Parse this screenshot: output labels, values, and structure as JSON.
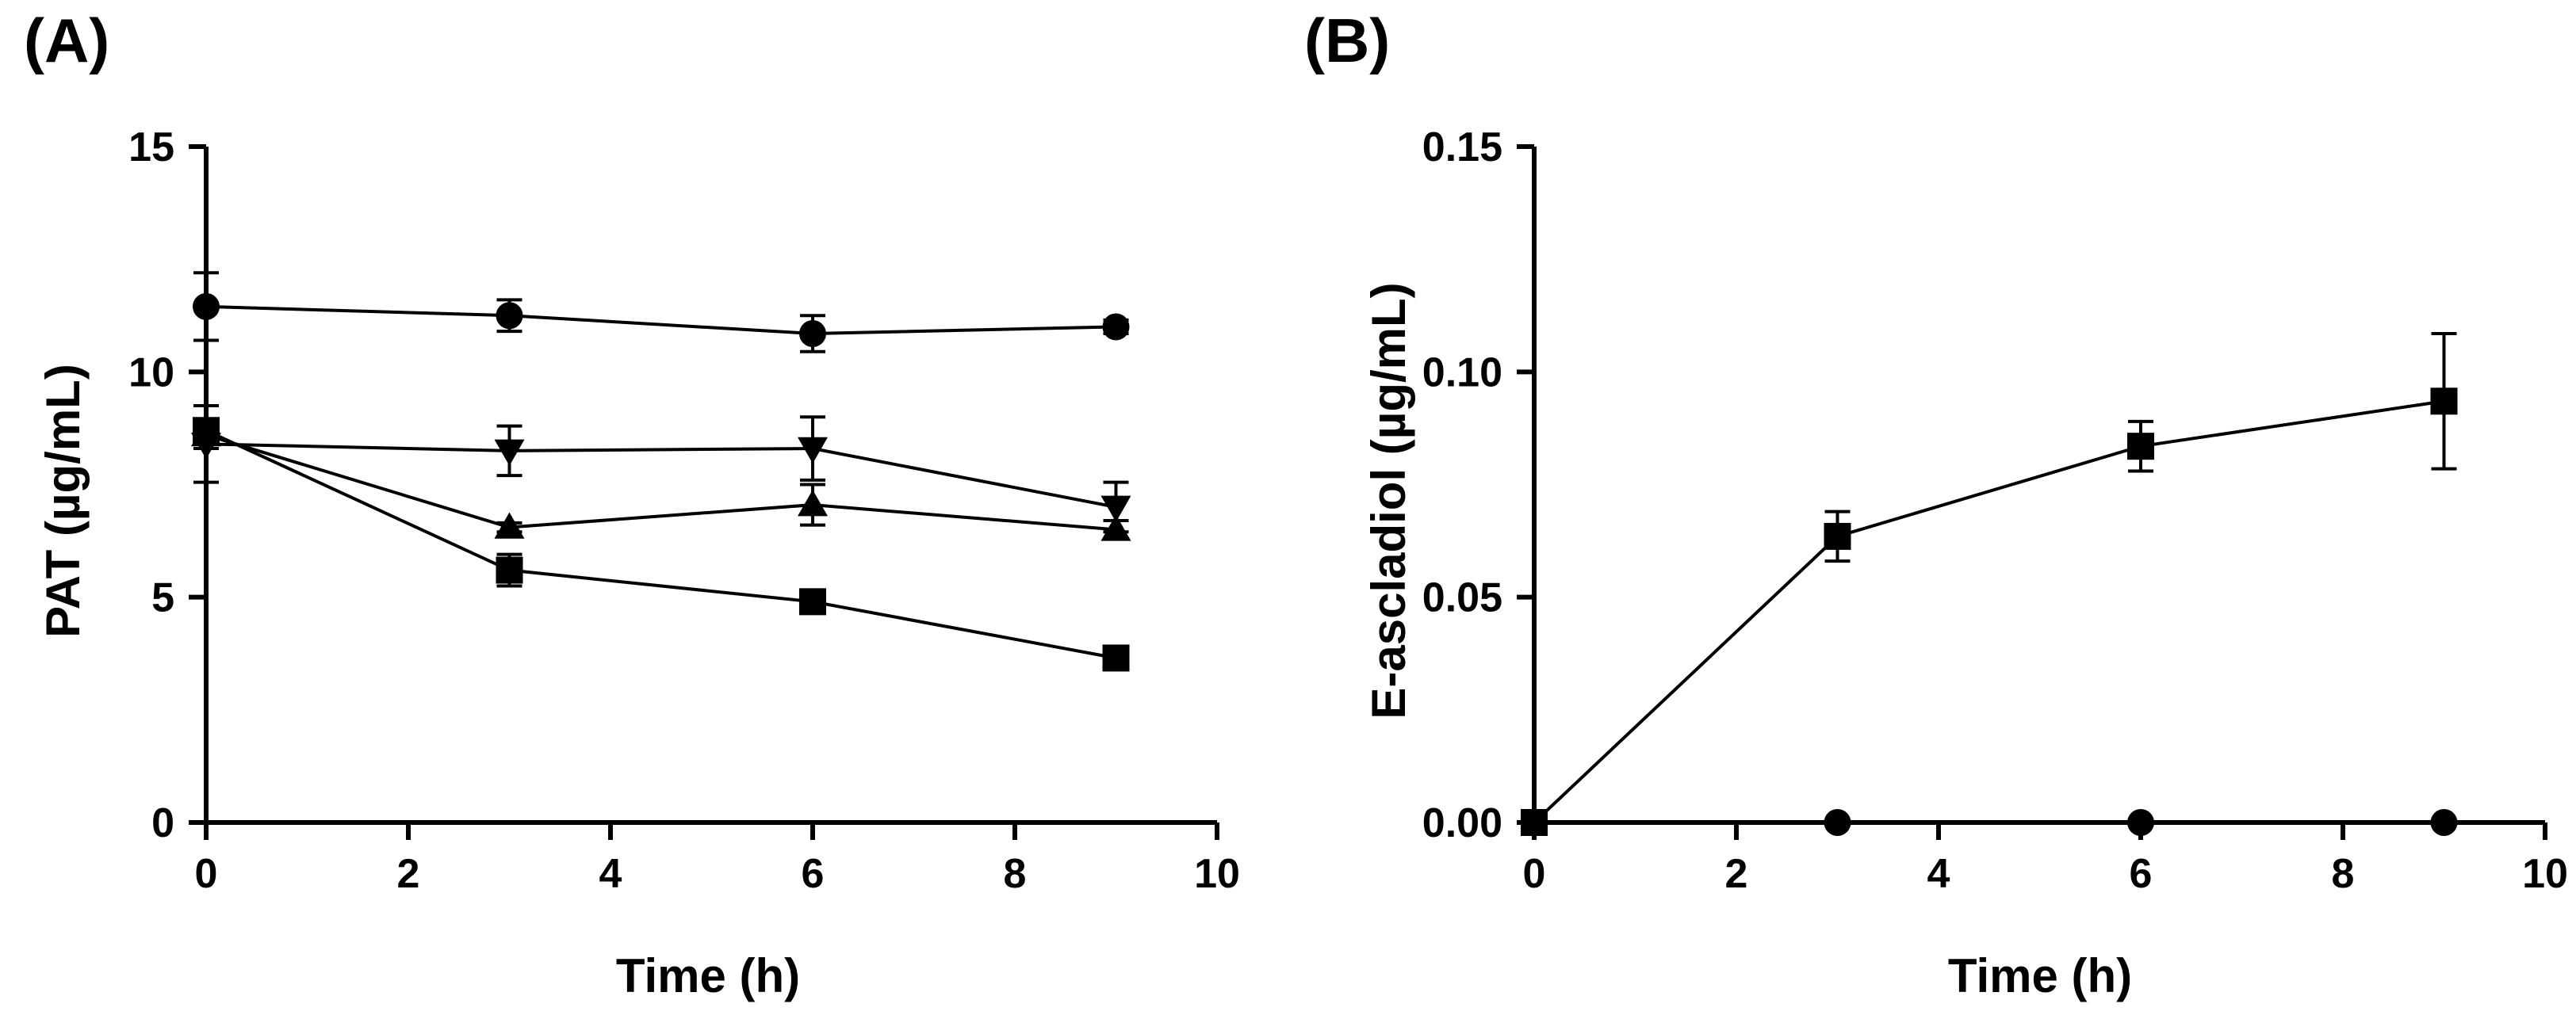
{
  "figure": {
    "panels": [
      "(A)",
      "(B)"
    ]
  },
  "chart_data": [
    {
      "panel": "(A)",
      "type": "line",
      "title": "",
      "xlabel": "Time (h)",
      "ylabel": "PAT (µg/mL)",
      "xlim": [
        0,
        10
      ],
      "ylim": [
        0,
        15
      ],
      "xticks": [
        0,
        2,
        4,
        6,
        8,
        10
      ],
      "yticks": [
        0,
        5,
        10,
        15
      ],
      "xtick_labels": [
        "0",
        "2",
        "4",
        "6",
        "8",
        "10"
      ],
      "ytick_labels": [
        "0",
        "5",
        "10",
        "15"
      ],
      "x": [
        0,
        3,
        6,
        9
      ],
      "series": [
        {
          "name": "circle",
          "marker": "circle",
          "values": [
            11.45,
            11.25,
            10.85,
            11.0
          ],
          "errors": [
            0.75,
            0.35,
            0.4,
            0.15
          ]
        },
        {
          "name": "triangle-down",
          "marker": "triangle-down",
          "values": [
            8.4,
            8.25,
            8.3,
            7.0
          ],
          "errors": [
            0.85,
            0.55,
            0.7,
            0.55
          ]
        },
        {
          "name": "triangle-up",
          "marker": "triangle-up",
          "values": [
            8.6,
            6.55,
            7.05,
            6.5
          ],
          "errors": [
            0.3,
            0.1,
            0.45,
            0.2
          ]
        },
        {
          "name": "square",
          "marker": "square",
          "values": [
            8.7,
            5.6,
            4.9,
            3.65
          ],
          "errors": [
            0.2,
            0.35,
            0.15,
            0.1
          ]
        }
      ],
      "legend": "none",
      "grid": false
    },
    {
      "panel": "(B)",
      "type": "line",
      "title": "",
      "xlabel": "Time (h)",
      "ylabel": "E-ascladiol (µg/mL)",
      "xlim": [
        0,
        10
      ],
      "ylim": [
        0,
        0.15
      ],
      "xticks": [
        0,
        2,
        4,
        6,
        8,
        10
      ],
      "yticks": [
        0,
        0.05,
        0.1,
        0.15
      ],
      "xtick_labels": [
        "0",
        "2",
        "4",
        "6",
        "8",
        "10"
      ],
      "ytick_labels": [
        "0.00",
        "0.05",
        "0.10",
        "0.15"
      ],
      "x": [
        0,
        3,
        6,
        9
      ],
      "series": [
        {
          "name": "square",
          "marker": "square",
          "values": [
            0.0,
            0.0635,
            0.0835,
            0.0935
          ],
          "errors": [
            0,
            0.0055,
            0.0055,
            0.015
          ]
        },
        {
          "name": "circle",
          "marker": "circle",
          "values": [
            0.0,
            0.0,
            0.0,
            0.0
          ],
          "errors": [
            0,
            0,
            0,
            0
          ]
        }
      ],
      "legend": "none",
      "grid": false
    }
  ]
}
